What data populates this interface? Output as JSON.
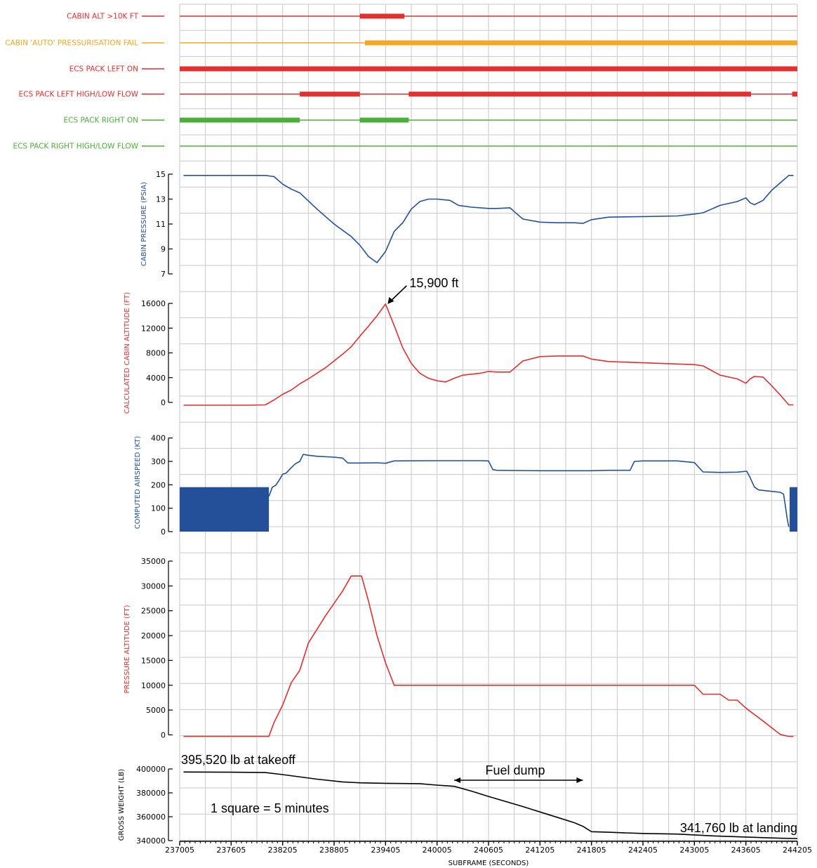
{
  "colors": {
    "red": "#e03030",
    "orange": "#f5a623",
    "green": "#4caf3a",
    "blue": "#24509a",
    "black": "#000000",
    "grid": "#c8c8c8"
  },
  "chart_data": {
    "type": "line",
    "x_axis": {
      "label": "SUBFRAME (SECONDS)",
      "range": [
        237005,
        244205
      ],
      "grid_step": 300,
      "ticks": [
        237005,
        237605,
        238205,
        238805,
        239405,
        240005,
        240605,
        241205,
        241805,
        242405,
        243005,
        243605,
        244205
      ],
      "tick_labels": [
        "237005",
        "237605",
        "238205",
        "238805",
        "239405",
        "240005",
        "240605",
        "241205",
        "241805",
        "242405",
        "243005",
        "243605",
        "244205"
      ]
    },
    "discretes": [
      {
        "label": "CABIN ALT >10K FT",
        "color": "red",
        "on": [
          [
            239105,
            239625
          ]
        ]
      },
      {
        "label": "CABIN 'AUTO' PRESSURISATION FAIL",
        "color": "orange",
        "on": [
          [
            239165,
            244205
          ]
        ]
      },
      {
        "label": "ECS PACK LEFT ON",
        "color": "red",
        "on": [
          [
            237005,
            244205
          ]
        ]
      },
      {
        "label": "ECS PACK LEFT HIGH/LOW FLOW",
        "color": "red",
        "on": [
          [
            238405,
            239105
          ],
          [
            239675,
            243665
          ],
          [
            244145,
            244205
          ]
        ]
      },
      {
        "label": "ECS PACK RIGHT ON",
        "color": "green",
        "on": [
          [
            237005,
            238405
          ],
          [
            239105,
            239675
          ]
        ]
      },
      {
        "label": "ECS PACK RIGHT HIGH/LOW FLOW",
        "color": "green",
        "on": []
      }
    ],
    "series": [
      {
        "name": "CABIN PRESSURE (PSIA)",
        "color": "blue",
        "ylim": [
          7,
          15
        ],
        "ticks": [
          7,
          9,
          11,
          13,
          15
        ],
        "tick_labels": [
          "7",
          "9",
          "11",
          "13",
          "15"
        ],
        "x": [
          237050,
          237605,
          238005,
          238105,
          238205,
          238305,
          238405,
          238605,
          238805,
          239005,
          239105,
          239205,
          239305,
          239405,
          239505,
          239605,
          239705,
          239805,
          239905,
          240005,
          240155,
          240255,
          240405,
          240605,
          240705,
          240855,
          240905,
          241005,
          241205,
          241405,
          241605,
          241705,
          241805,
          242005,
          242405,
          242805,
          243005,
          243105,
          243305,
          243505,
          243605,
          243655,
          243705,
          243805,
          243905,
          244005,
          244105,
          244160
        ],
        "y": [
          14.9,
          14.9,
          14.9,
          14.8,
          14.2,
          13.8,
          13.5,
          12.2,
          11,
          10,
          9.3,
          8.4,
          7.9,
          8.8,
          10.4,
          11.1,
          12.2,
          12.8,
          13,
          13,
          12.9,
          12.5,
          12.35,
          12.25,
          12.25,
          12.3,
          12.0,
          11.4,
          11.15,
          11.1,
          11.1,
          11.05,
          11.35,
          11.55,
          11.6,
          11.65,
          11.8,
          11.9,
          12.5,
          12.8,
          13.1,
          12.7,
          12.55,
          12.9,
          13.7,
          14.3,
          14.9,
          14.9
        ]
      },
      {
        "name": "CALCULATED CABIN ALTITUDE (FT)",
        "color": "red",
        "ylim": [
          0,
          16000
        ],
        "ticks": [
          0,
          4000,
          8000,
          12000,
          16000
        ],
        "tick_labels": [
          "0",
          "4000",
          "8000",
          "12000",
          "16000"
        ],
        "x": [
          237050,
          237605,
          237805,
          238005,
          238105,
          238205,
          238305,
          238405,
          238505,
          238705,
          238905,
          239005,
          239105,
          239205,
          239305,
          239405,
          239505,
          239605,
          239705,
          239805,
          239905,
          240005,
          240105,
          240205,
          240305,
          240505,
          240605,
          240705,
          240855,
          241005,
          241205,
          241405,
          241705,
          241805,
          242005,
          242405,
          243005,
          243105,
          243305,
          243505,
          243605,
          243655,
          243705,
          243805,
          243905,
          244005,
          244105,
          244160
        ],
        "y": [
          -450,
          -450,
          -450,
          -400,
          400,
          1300,
          2000,
          3000,
          3800,
          5600,
          7800,
          9000,
          10700,
          12300,
          14000,
          15900,
          12400,
          8800,
          6300,
          4700,
          3900,
          3500,
          3300,
          3900,
          4400,
          4700,
          5000,
          4900,
          4900,
          6700,
          7400,
          7500,
          7500,
          7000,
          6600,
          6400,
          6100,
          5900,
          4400,
          3800,
          3100,
          3800,
          4200,
          4100,
          2700,
          1200,
          -400,
          -400
        ],
        "annotation": "15,900 ft"
      },
      {
        "name": "COMPUTED AIRSPEED (KT)",
        "color": "blue",
        "ylim": [
          0,
          420
        ],
        "ticks": [
          0,
          100,
          200,
          300,
          400
        ],
        "tick_labels": [
          "0",
          "100",
          "200",
          "300",
          "400"
        ],
        "invalid_ranges": [
          [
            237005,
            238045,
            190
          ],
          [
            244115,
            244205,
            190
          ]
        ],
        "x": [
          238045,
          238085,
          238125,
          238165,
          238205,
          238245,
          238325,
          238355,
          238405,
          238445,
          238505,
          238605,
          238805,
          238905,
          238965,
          239105,
          239305,
          239405,
          239505,
          240005,
          240505,
          240605,
          240655,
          240705,
          241205,
          241805,
          242005,
          242255,
          242305,
          242405,
          242805,
          243005,
          243105,
          243305,
          243505,
          243615,
          243655,
          243705,
          243755,
          243905,
          244005,
          244045,
          244065,
          244085,
          244105
        ],
        "y": [
          150,
          190,
          198,
          220,
          245,
          250,
          280,
          290,
          300,
          330,
          326,
          322,
          318,
          314,
          293,
          293,
          294,
          292,
          302,
          303,
          303,
          302,
          265,
          262,
          260,
          260,
          262,
          262,
          300,
          302,
          302,
          295,
          255,
          253,
          254,
          258,
          230,
          190,
          178,
          172,
          168,
          160,
          110,
          60,
          20
        ]
      },
      {
        "name": "PRESSURE ALTITUDE (FT)",
        "color": "red",
        "ylim": [
          -500,
          35000
        ],
        "ticks": [
          0,
          5000,
          10000,
          15000,
          20000,
          25000,
          30000,
          35000
        ],
        "tick_labels": [
          "0",
          "5000",
          "10000",
          "15000",
          "20000",
          "25000",
          "30000",
          "35000"
        ],
        "x": [
          237050,
          237605,
          238005,
          238045,
          238105,
          238205,
          238305,
          238405,
          238505,
          238705,
          238905,
          239005,
          239125,
          239205,
          239305,
          239405,
          239505,
          239555,
          239605,
          240205,
          240805,
          241405,
          242005,
          242605,
          243005,
          243105,
          243305,
          243405,
          243505,
          243605,
          243805,
          244005,
          244105,
          244160
        ],
        "y": [
          -300,
          -300,
          -300,
          -300,
          2500,
          6000,
          10500,
          13000,
          18500,
          24000,
          29000,
          32000,
          32000,
          27000,
          20000,
          14500,
          10000,
          10000,
          10000,
          10000,
          10000,
          10000,
          10000,
          10000,
          10000,
          8200,
          8200,
          7000,
          7000,
          5400,
          2800,
          100,
          -300,
          -300
        ]
      },
      {
        "name": "GROSS WEIGHT (LB)",
        "color": "black",
        "ylim": [
          340000,
          400000
        ],
        "ticks": [
          340000,
          360000,
          380000,
          400000
        ],
        "tick_labels": [
          "340000",
          "360000",
          "380000",
          "400000"
        ],
        "x": [
          237050,
          237605,
          238005,
          238205,
          238605,
          238905,
          239105,
          239405,
          239805,
          240005,
          240205,
          240405,
          240605,
          241005,
          241405,
          241605,
          241705,
          241805,
          242005,
          242205,
          242405,
          242805,
          243205,
          243605,
          244005,
          244205
        ],
        "y": [
          397500,
          397300,
          397000,
          395300,
          391500,
          389200,
          388400,
          388000,
          387700,
          386500,
          385500,
          381500,
          377000,
          368500,
          359500,
          355000,
          352000,
          347500,
          347000,
          346500,
          346000,
          345500,
          344000,
          343000,
          342000,
          341760
        ]
      }
    ],
    "annotations": {
      "takeoff": "395,520 lb at takeoff",
      "landing": "341,760 lb at landing",
      "fuel_dump": "Fuel dump",
      "fuel_dump_range": [
        240205,
        241705
      ],
      "scale_note": "1 square = 5 minutes"
    }
  }
}
